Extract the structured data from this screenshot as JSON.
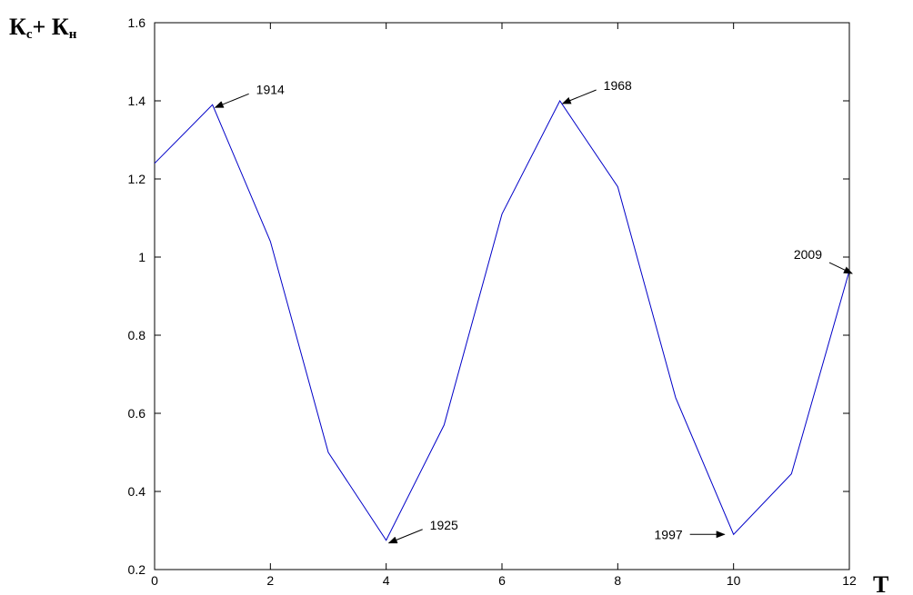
{
  "chart_data": {
    "type": "line",
    "title": "",
    "ylabel": {
      "main": "К",
      "sub1": "с",
      "plus": "+ ",
      "main2": "К",
      "sub2": "н"
    },
    "xlabel": "Т",
    "xlim": [
      0,
      12
    ],
    "ylim": [
      0.2,
      1.6
    ],
    "xticks": [
      0,
      2,
      4,
      6,
      8,
      10,
      12
    ],
    "yticks": [
      0.2,
      0.4,
      0.6,
      0.8,
      1,
      1.2,
      1.4,
      1.6
    ],
    "grid": false,
    "series": [
      {
        "color": "#0000c8",
        "x": [
          0,
          1,
          2,
          3,
          4,
          5,
          6,
          7,
          8,
          9,
          10,
          11,
          12
        ],
        "y": [
          1.24,
          1.39,
          1.04,
          0.5,
          0.275,
          0.57,
          1.11,
          1.4,
          1.18,
          0.64,
          0.29,
          0.445,
          0.965
        ]
      }
    ],
    "annotations": [
      {
        "text": "1914",
        "x": 1,
        "y": 1.39,
        "dir": "right-up"
      },
      {
        "text": "1925",
        "x": 4,
        "y": 0.275,
        "dir": "right-up"
      },
      {
        "text": "1968",
        "x": 7,
        "y": 1.4,
        "dir": "right-up"
      },
      {
        "text": "1997",
        "x": 10,
        "y": 0.29,
        "dir": "left"
      },
      {
        "text": "2009",
        "x": 12,
        "y": 0.965,
        "dir": "left-up"
      }
    ]
  }
}
